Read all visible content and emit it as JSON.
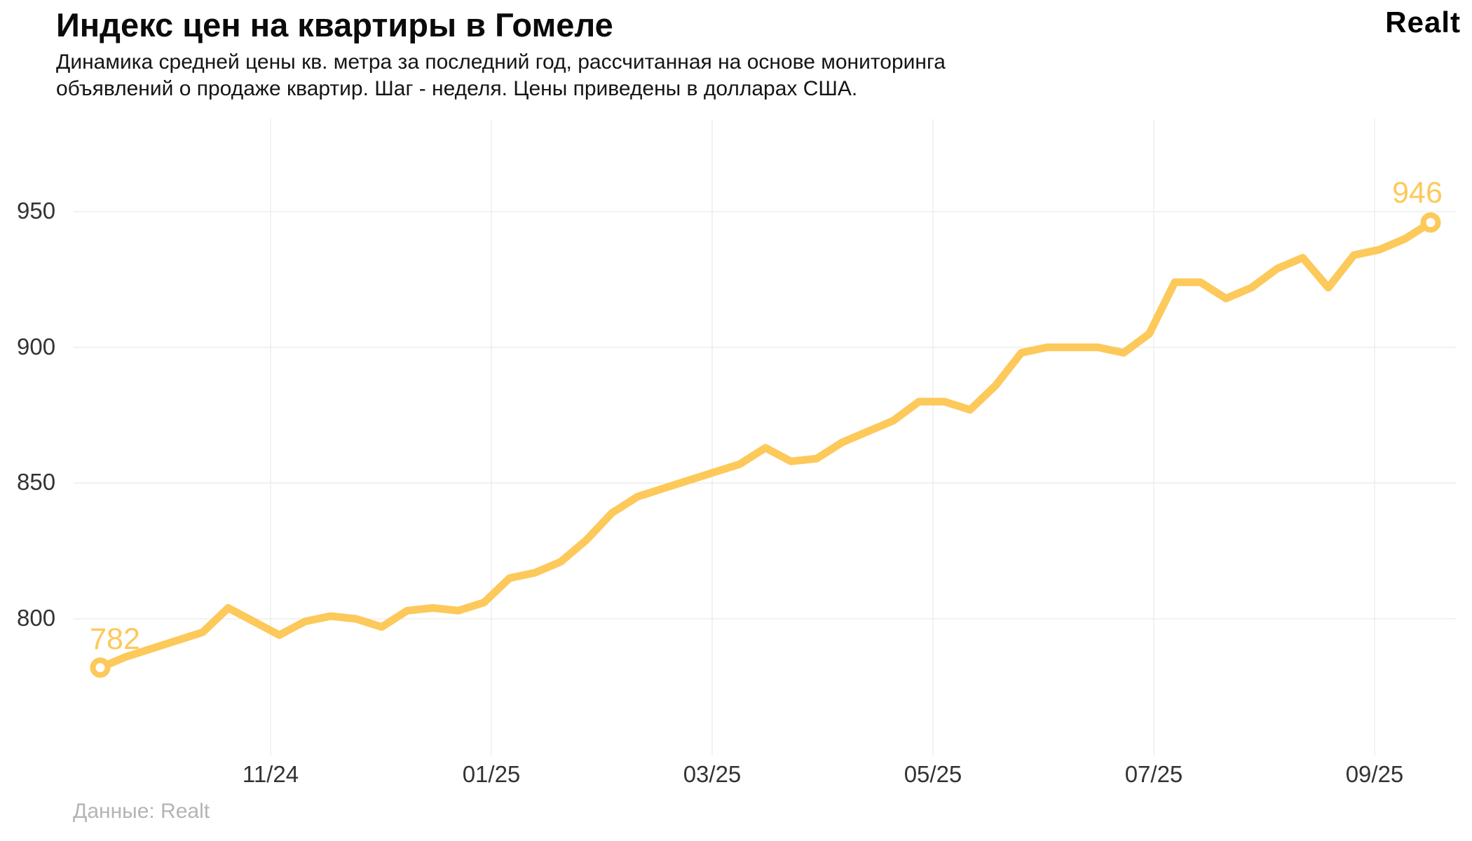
{
  "header": {
    "logo": "Realt"
  },
  "footer": {
    "source": "Данные: Realt"
  },
  "chart_data": {
    "type": "line",
    "title": "Индекс цен на квартиры в Гомеле",
    "subtitle": "Динамика средней цены кв. метра за последний год, рассчитанная на основе мониторинга объявлений о продаже квартир. Шаг - неделя. Цены приведены в долларах США.",
    "xlabel": "",
    "ylabel": "",
    "x_tick_labels": [
      "11/24",
      "01/25",
      "03/25",
      "05/25",
      "07/25",
      "09/25"
    ],
    "y_ticks": [
      950,
      900,
      850,
      800
    ],
    "ylim": [
      750,
      985
    ],
    "grid": true,
    "legend": "none",
    "line_color": "#FCC95A",
    "grid_color": "#ededed",
    "x_step": "week",
    "values": [
      782,
      786,
      789,
      792,
      795,
      804,
      799,
      794,
      799,
      801,
      800,
      797,
      803,
      804,
      803,
      806,
      815,
      817,
      821,
      829,
      839,
      845,
      848,
      851,
      854,
      857,
      863,
      858,
      859,
      865,
      869,
      873,
      880,
      880,
      877,
      886,
      898,
      900,
      900,
      900,
      898,
      905,
      924,
      924,
      918,
      922,
      929,
      933,
      922,
      934,
      936,
      940,
      946
    ],
    "start_label": "782",
    "end_label": "946"
  }
}
